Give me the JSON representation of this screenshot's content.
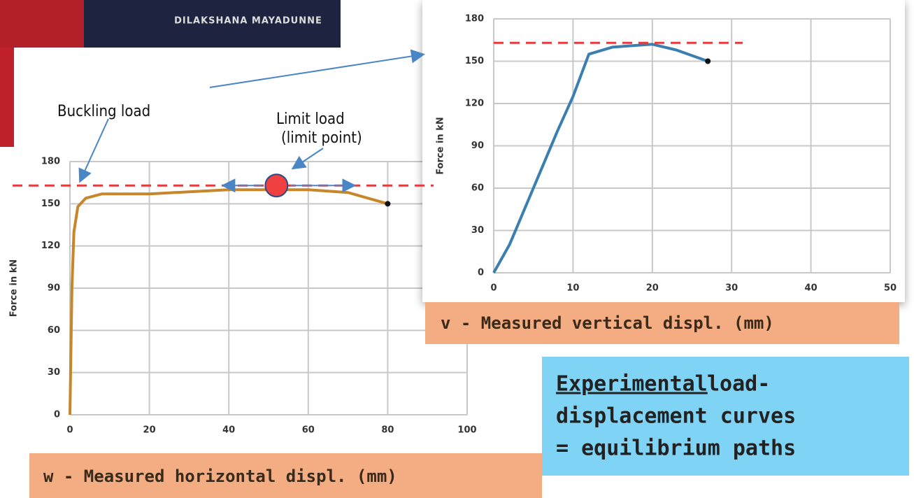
{
  "chart_data": [
    {
      "type": "line",
      "ylabel": "Force in kN",
      "xlabel": "w - Measured horizontal displ. (mm)",
      "xlim": [
        0,
        100
      ],
      "xticks": [
        0,
        20,
        40,
        60,
        80,
        100
      ],
      "ylim": [
        0,
        180
      ],
      "yticks": [
        0,
        30,
        60,
        90,
        120,
        150,
        180
      ],
      "grid": true,
      "reference_line": 163,
      "limit_point": {
        "x": 52,
        "y": 163
      },
      "series": [
        {
          "color": "#c8862a",
          "x": [
            0,
            0.5,
            1,
            2,
            4,
            8,
            20,
            40,
            60,
            70,
            80
          ],
          "values": [
            0,
            90,
            130,
            148,
            154,
            157,
            157,
            160,
            160,
            158,
            150
          ]
        }
      ]
    },
    {
      "type": "line",
      "ylabel": "Force in kN",
      "xlabel": "v - Measured vertical displ. (mm)",
      "xlim": [
        0,
        50
      ],
      "xticks": [
        0,
        10,
        20,
        30,
        40,
        50
      ],
      "ylim": [
        0,
        180
      ],
      "yticks": [
        0,
        30,
        60,
        90,
        120,
        150,
        180
      ],
      "grid": true,
      "reference_line": 163,
      "series": [
        {
          "color": "#3a7fb0",
          "x": [
            0,
            2,
            5,
            8,
            10,
            12,
            15,
            20,
            23,
            27
          ],
          "values": [
            0,
            20,
            60,
            100,
            125,
            155,
            160,
            162,
            158,
            150
          ]
        }
      ]
    }
  ],
  "annotations": {
    "cover": "DILAKSHANA MAYADUNNE",
    "buckling": "Buckling load",
    "limit": "Limit load",
    "limit_sub": "(limit point)",
    "caption_underlined": "Experimental",
    "caption_1": " load-",
    "caption_2": "displacement curves",
    "caption_3": "= equilibrium paths"
  }
}
